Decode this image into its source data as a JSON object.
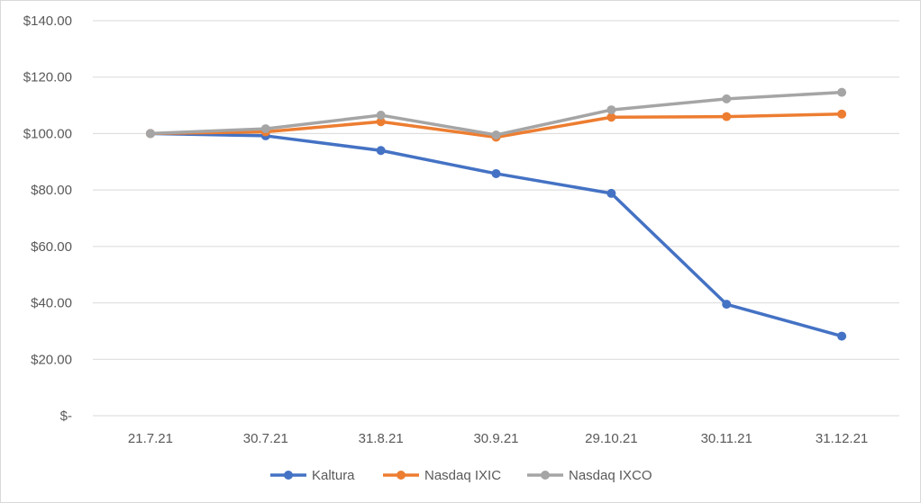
{
  "chart_data": {
    "type": "line",
    "title": "",
    "xlabel": "",
    "ylabel": "",
    "categories": [
      "21.7.21",
      "30.7.21",
      "31.8.21",
      "30.9.21",
      "29.10.21",
      "30.11.21",
      "31.12.21"
    ],
    "ylim": [
      0,
      140
    ],
    "yticks": [
      0,
      20,
      40,
      60,
      80,
      100,
      120,
      140
    ],
    "ytick_labels": [
      "$-",
      "$20.00",
      "$40.00",
      "$60.00",
      "$80.00",
      "$100.00",
      "$120.00",
      "$140.00"
    ],
    "grid": true,
    "legend_position": "bottom",
    "series": [
      {
        "name": "Kaltura",
        "color": "#4472c4",
        "values": [
          100,
          99.2,
          94,
          85.8,
          78.8,
          39.5,
          28.2
        ]
      },
      {
        "name": "Nasdaq IXIC",
        "color": "#ed7d31",
        "values": [
          100,
          100.6,
          104.2,
          98.7,
          105.8,
          106,
          106.9
        ]
      },
      {
        "name": "Nasdaq IXCO",
        "color": "#a5a5a5",
        "values": [
          100,
          101.7,
          106.5,
          99.5,
          108.4,
          112.3,
          114.6
        ]
      }
    ]
  }
}
